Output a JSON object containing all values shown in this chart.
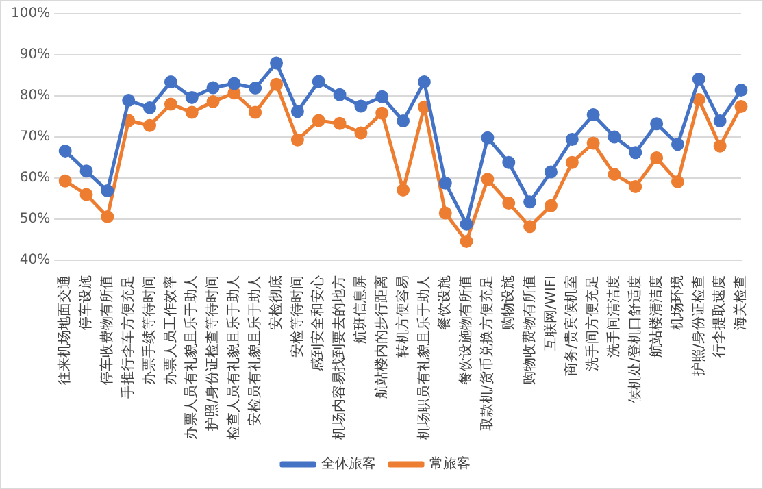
{
  "chart_data": {
    "type": "line",
    "categories": [
      "往来机场地面交通",
      "停车设施",
      "停车收费物有所值",
      "手推行李车方便充足",
      "办票手续等待时间",
      "办票人员工作效率",
      "办票人员有礼貌且乐于助人",
      "护照/身份证检查等待时间",
      "检查人员有礼貌且乐于助人",
      "安检员有礼貌且乐于助人",
      "安检彻底",
      "安检等待时间",
      "感到安全和安心",
      "机场内容易找到要去的地方",
      "航班信息屏",
      "航站楼内的步行距离",
      "转机方便容易",
      "机场职员有礼貌且乐于助人",
      "餐饮设施",
      "餐饮设施物有所值",
      "取款机/货币兑换方便充足",
      "购物设施",
      "购物收费物有所值",
      "互联网/WIFI",
      "商务/贵宾候机室",
      "洗手间方便充足",
      "洗手间清洁度",
      "候机处/登机口舒适度",
      "航站楼清洁度",
      "机场环境",
      "护照/身份证检查",
      "行李提取速度",
      "海关检查"
    ],
    "series": [
      {
        "name": "全体旅客",
        "color": "#4472c4",
        "values": [
          66.6,
          61.7,
          56.9,
          78.9,
          77.1,
          83.4,
          79.6,
          82,
          83,
          81.9,
          88,
          76.2,
          83.5,
          80.3,
          77.5,
          79.8,
          73.9,
          83.4,
          58.8,
          48.8,
          69.8,
          63.8,
          54.2,
          61.5,
          69.4,
          75.4,
          70,
          66.2,
          73.2,
          68.2,
          84.1,
          73.9,
          81.4
        ]
      },
      {
        "name": "常旅客",
        "color": "#ed7d31",
        "values": [
          59.3,
          56,
          50.6,
          74,
          72.8,
          78,
          76,
          78.6,
          80.7,
          76,
          82.8,
          69.3,
          74,
          73.3,
          71,
          75.8,
          57.1,
          77.3,
          51.5,
          44.6,
          59.7,
          53.9,
          48.2,
          53.3,
          63.8,
          68.5,
          60.9,
          57.9,
          64.9,
          59.1,
          79.1,
          67.8,
          77.4
        ]
      }
    ],
    "ylim": [
      40,
      100
    ],
    "yticks": [
      {
        "value": 40,
        "label": "40%"
      },
      {
        "value": 50,
        "label": "50%"
      },
      {
        "value": 60,
        "label": "60%"
      },
      {
        "value": 70,
        "label": "70%"
      },
      {
        "value": 80,
        "label": "80%"
      },
      {
        "value": 90,
        "label": "90%"
      },
      {
        "value": 100,
        "label": "100%"
      }
    ],
    "grid": "y",
    "legend": "bottom",
    "marker": "circle",
    "line_style": "solid"
  }
}
